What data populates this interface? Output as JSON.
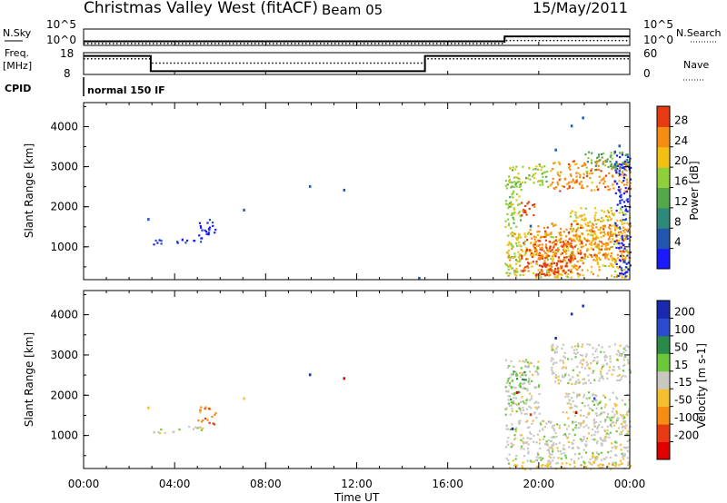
{
  "header": {
    "station": "Christmas Valley West (fitACF)",
    "beam": "Beam 05",
    "date": "15/May/2011"
  },
  "status_panels": {
    "nsky_label": "N.Sky",
    "nsky_ticks": [
      "10^5",
      "10^0"
    ],
    "nsearch_label": "N.Search",
    "nsearch_ticks": [
      "10^5",
      "10^0"
    ],
    "freq_label_1": "Freq.",
    "freq_label_2": "[MHz]",
    "freq_ticks": [
      "18",
      "8"
    ],
    "nave_label": "Nave",
    "nave_ticks": [
      "60",
      "0"
    ],
    "cpid_label": "CPID",
    "cpid_text": "normal 150 IF",
    "freq_steps": [
      {
        "from": 0.0,
        "to": 2.95,
        "value": 0.85
      },
      {
        "from": 2.95,
        "to": 15.0,
        "value": 0.15
      },
      {
        "from": 15.0,
        "to": 24.0,
        "value": 0.85
      }
    ],
    "nave_steps": [
      {
        "from": 0.0,
        "to": 2.95,
        "value": 0.72
      },
      {
        "from": 2.95,
        "to": 15.0,
        "value": 0.52
      },
      {
        "from": 15.0,
        "to": 24.0,
        "value": 0.72
      }
    ],
    "nsky_steps": [
      {
        "from": 0.0,
        "to": 18.5,
        "value": 0.25
      },
      {
        "from": 18.5,
        "to": 24.0,
        "value": 0.55
      }
    ],
    "nsearch_steps": [
      {
        "from": 0.0,
        "to": 18.5,
        "value": 0.12
      },
      {
        "from": 18.5,
        "to": 24.0,
        "value": 0.3
      }
    ]
  },
  "chart_data": [
    {
      "type": "heatmap",
      "ylabel": "Slant Range [km]",
      "ylim": [
        180,
        4600
      ],
      "y_ticks": [
        "1000",
        "2000",
        "3000",
        "4000"
      ],
      "colorbar_label": "Power [dB]",
      "colorbar_ticks": [
        "4",
        "8",
        "12",
        "16",
        "20",
        "24",
        "28"
      ],
      "colorbar_colors": [
        "#1a1aff",
        "#2255b0",
        "#2e8a78",
        "#54a84a",
        "#8fcf3a",
        "#f2c010",
        "#f58c14",
        "#e83a10"
      ],
      "scatter_points": [
        {
          "t": 2.8,
          "r": 1720,
          "c": 1
        },
        {
          "t": 7.0,
          "r": 1950,
          "c": 1
        },
        {
          "t": 9.9,
          "r": 2540,
          "c": 1
        },
        {
          "t": 11.4,
          "r": 2450,
          "c": 1
        },
        {
          "t": 14.7,
          "r": 250,
          "c": 1
        },
        {
          "t": 21.9,
          "r": 4250,
          "c": 1
        },
        {
          "t": 21.4,
          "r": 4050,
          "c": 1
        },
        {
          "t": 19.6,
          "r": 1550,
          "c": 1
        },
        {
          "t": 20.7,
          "r": 3450,
          "c": 1
        },
        {
          "t": 23.5,
          "r": 3550,
          "c": 1
        },
        {
          "t": 23.3,
          "r": 3400,
          "c": 1
        }
      ],
      "patches": [
        {
          "t0": 3.0,
          "t1": 4.4,
          "r0": 1080,
          "r1": 1200,
          "c": 0
        },
        {
          "t0": 4.2,
          "t1": 5.2,
          "r0": 1100,
          "r1": 1250,
          "c": 0
        },
        {
          "t0": 5.0,
          "t1": 5.8,
          "r0": 1300,
          "r1": 1750,
          "c": 0
        },
        {
          "t0": 18.5,
          "t1": 19.2,
          "r0": 250,
          "r1": 2800,
          "c": 4
        },
        {
          "t0": 19.0,
          "t1": 19.8,
          "r0": 1800,
          "r1": 2150,
          "c": 7
        },
        {
          "t0": 18.6,
          "t1": 24.0,
          "r0": 250,
          "r1": 1400,
          "c": 5
        },
        {
          "t0": 19.2,
          "t1": 22.0,
          "r0": 350,
          "r1": 1200,
          "c": 7
        },
        {
          "t0": 19.8,
          "t1": 21.4,
          "r0": 300,
          "r1": 700,
          "c": 7
        },
        {
          "t0": 20.5,
          "t1": 24.0,
          "r0": 2400,
          "r1": 3200,
          "c": 6
        },
        {
          "t0": 21.3,
          "t1": 24.0,
          "r0": 1300,
          "r1": 2000,
          "c": 5
        },
        {
          "t0": 23.3,
          "t1": 24.0,
          "r0": 200,
          "r1": 3400,
          "c": 0
        },
        {
          "t0": 18.6,
          "t1": 20.5,
          "r0": 2500,
          "r1": 3100,
          "c": 4
        },
        {
          "t0": 22.0,
          "t1": 24.0,
          "r0": 2900,
          "r1": 3400,
          "c": 3
        },
        {
          "t0": 19.5,
          "t1": 24.0,
          "r0": 700,
          "r1": 1600,
          "c": 6
        }
      ]
    },
    {
      "type": "heatmap",
      "ylabel": "Slant Range [km]",
      "ylim": [
        180,
        4600
      ],
      "y_ticks": [
        "1000",
        "2000",
        "3000",
        "4000"
      ],
      "colorbar_label": "Velocity [m s-1]",
      "colorbar_ticks": [
        "200",
        "100",
        "50",
        "15",
        "-15",
        "-50",
        "-100",
        "-200"
      ],
      "colorbar_colors": [
        "#1a2ab0",
        "#2a4ad0",
        "#2a8a4a",
        "#6ac83a",
        "#c8c8c0",
        "#f5c030",
        "#f58c14",
        "#e83a10",
        "#e00000"
      ],
      "scatter_points": [
        {
          "t": 2.8,
          "r": 1720,
          "c": 5
        },
        {
          "t": 7.0,
          "r": 1950,
          "c": 5
        },
        {
          "t": 9.9,
          "r": 2540,
          "c": 0
        },
        {
          "t": 11.4,
          "r": 2450,
          "c": 8
        },
        {
          "t": 21.9,
          "r": 4250,
          "c": 0
        },
        {
          "t": 21.4,
          "r": 4050,
          "c": 0
        },
        {
          "t": 19.6,
          "r": 1550,
          "c": 7
        },
        {
          "t": 20.7,
          "r": 3450,
          "c": 0
        },
        {
          "t": 19.0,
          "r": 2100,
          "c": 8
        },
        {
          "t": 21.6,
          "r": 1600,
          "c": 8
        },
        {
          "t": 22.4,
          "r": 1950,
          "c": 1
        },
        {
          "t": 18.8,
          "r": 1200,
          "c": 0
        }
      ],
      "patches": [
        {
          "t0": 3.0,
          "t1": 4.4,
          "r0": 1080,
          "r1": 1200,
          "c": 4
        },
        {
          "t0": 4.2,
          "t1": 5.2,
          "r0": 1100,
          "r1": 1250,
          "c": 4
        },
        {
          "t0": 5.0,
          "t1": 5.8,
          "r0": 1300,
          "r1": 1750,
          "c": 6
        },
        {
          "t0": 18.5,
          "t1": 24.0,
          "r0": 300,
          "r1": 1400,
          "c": 4
        },
        {
          "t0": 18.5,
          "t1": 20.0,
          "r0": 1400,
          "r1": 2900,
          "c": 4
        },
        {
          "t0": 20.5,
          "t1": 24.0,
          "r0": 2300,
          "r1": 3300,
          "c": 4
        },
        {
          "t0": 21.0,
          "t1": 24.0,
          "r0": 1300,
          "r1": 2100,
          "c": 4
        },
        {
          "t0": 18.6,
          "t1": 24.0,
          "r0": 180,
          "r1": 350,
          "c": 5
        },
        {
          "t0": 18.6,
          "t1": 19.4,
          "r0": 1800,
          "r1": 2700,
          "c": 3
        }
      ]
    }
  ],
  "x_axis": {
    "label": "Time UT",
    "xlim": [
      0,
      24
    ],
    "ticks": [
      "00:00",
      "04:00",
      "08:00",
      "12:00",
      "16:00",
      "20:00",
      "00:00"
    ]
  }
}
